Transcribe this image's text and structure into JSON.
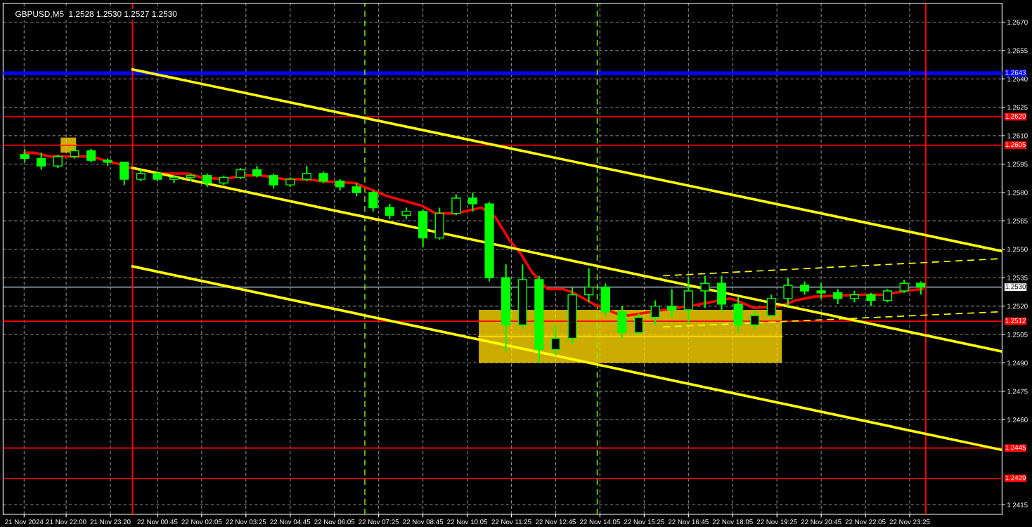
{
  "chart_data": {
    "type": "candlestick",
    "title": "GBPUSD,M5  1.2528 1.2530 1.2527 1.2530",
    "color": "#00ff00",
    "x": [
      "2024-11-21T20:45",
      "2024-11-21T21:15",
      "2024-11-21T21:45",
      "2024-11-21T22:15",
      "2024-11-21T22:45",
      "2024-11-21T23:15",
      "2024-11-21T23:45",
      "2024-11-22T00:15",
      "2024-11-22T00:45",
      "2024-11-22T01:15",
      "2024-11-22T01:45",
      "2024-11-22T02:15",
      "2024-11-22T02:45",
      "2024-11-22T03:15",
      "2024-11-22T03:45",
      "2024-11-22T04:15",
      "2024-11-22T04:45",
      "2024-11-22T05:15",
      "2024-11-22T05:45",
      "2024-11-22T06:15",
      "2024-11-22T06:45",
      "2024-11-22T07:15",
      "2024-11-22T07:45",
      "2024-11-22T08:15",
      "2024-11-22T08:45",
      "2024-11-22T09:15",
      "2024-11-22T09:45",
      "2024-11-22T10:15",
      "2024-11-22T10:45",
      "2024-11-22T11:15",
      "2024-11-22T11:45",
      "2024-11-22T12:15",
      "2024-11-22T12:45",
      "2024-11-22T13:15",
      "2024-11-22T13:45",
      "2024-11-22T14:15",
      "2024-11-22T14:45",
      "2024-11-22T15:15",
      "2024-11-22T15:45",
      "2024-11-22T16:15",
      "2024-11-22T16:45",
      "2024-11-22T17:15",
      "2024-11-22T17:45",
      "2024-11-22T18:15",
      "2024-11-22T18:45",
      "2024-11-22T19:15",
      "2024-11-22T19:45",
      "2024-11-22T20:15",
      "2024-11-22T20:45",
      "2024-11-22T21:15",
      "2024-11-22T21:45",
      "2024-11-22T22:15",
      "2024-11-22T22:45",
      "2024-11-22T23:15",
      "2024-11-22T23:45"
    ],
    "ohlc": [
      [
        1.26,
        1.2603,
        1.2596,
        1.2598
      ],
      [
        1.2598,
        1.2601,
        1.2592,
        1.2594
      ],
      [
        1.2594,
        1.26,
        1.2593,
        1.2599
      ],
      [
        1.2599,
        1.2604,
        1.2598,
        1.2602
      ],
      [
        1.2602,
        1.2603,
        1.2596,
        1.2597
      ],
      [
        1.2597,
        1.2598,
        1.2594,
        1.2596
      ],
      [
        1.2596,
        1.2596,
        1.2584,
        1.2587
      ],
      [
        1.2587,
        1.2592,
        1.2586,
        1.259
      ],
      [
        1.259,
        1.2591,
        1.2586,
        1.2587
      ],
      [
        1.2587,
        1.2589,
        1.2585,
        1.2588
      ],
      [
        1.2588,
        1.259,
        1.2586,
        1.2589
      ],
      [
        1.2589,
        1.259,
        1.2583,
        1.2585
      ],
      [
        1.2585,
        1.2589,
        1.2584,
        1.2588
      ],
      [
        1.2588,
        1.2593,
        1.2587,
        1.2592
      ],
      [
        1.2592,
        1.2594,
        1.2588,
        1.2589
      ],
      [
        1.2589,
        1.259,
        1.2582,
        1.2584
      ],
      [
        1.2584,
        1.2588,
        1.2583,
        1.2587
      ],
      [
        1.2587,
        1.2594,
        1.2586,
        1.259
      ],
      [
        1.259,
        1.2591,
        1.2585,
        1.2586
      ],
      [
        1.2586,
        1.2587,
        1.2581,
        1.2583
      ],
      [
        1.2583,
        1.2585,
        1.2578,
        1.258
      ],
      [
        1.258,
        1.2581,
        1.257,
        1.2572
      ],
      [
        1.2572,
        1.2574,
        1.2566,
        1.2568
      ],
      [
        1.2568,
        1.2572,
        1.2566,
        1.257
      ],
      [
        1.257,
        1.2571,
        1.2551,
        1.2556
      ],
      [
        1.2556,
        1.2572,
        1.2555,
        1.2569
      ],
      [
        1.2569,
        1.2579,
        1.2568,
        1.2577
      ],
      [
        1.2577,
        1.258,
        1.257,
        1.2574
      ],
      [
        1.2574,
        1.2575,
        1.2533,
        1.2535
      ],
      [
        1.2535,
        1.2542,
        1.2496,
        1.251
      ],
      [
        1.251,
        1.2542,
        1.2508,
        1.2534
      ],
      [
        1.2534,
        1.2536,
        1.249,
        1.2497
      ],
      [
        1.2497,
        1.251,
        1.2494,
        1.2503
      ],
      [
        1.2503,
        1.253,
        1.25,
        1.2526
      ],
      [
        1.2526,
        1.254,
        1.2522,
        1.253
      ],
      [
        1.253,
        1.2532,
        1.2515,
        1.2517
      ],
      [
        1.2517,
        1.252,
        1.2503,
        1.2506
      ],
      [
        1.2506,
        1.2516,
        1.2505,
        1.2514
      ],
      [
        1.2514,
        1.2523,
        1.251,
        1.252
      ],
      [
        1.252,
        1.2529,
        1.2514,
        1.2518
      ],
      [
        1.2518,
        1.2535,
        1.2511,
        1.2528
      ],
      [
        1.2528,
        1.2536,
        1.2519,
        1.2532
      ],
      [
        1.2532,
        1.2536,
        1.2517,
        1.2521
      ],
      [
        1.2521,
        1.2525,
        1.2506,
        1.251
      ],
      [
        1.251,
        1.2518,
        1.2508,
        1.2515
      ],
      [
        1.2515,
        1.2526,
        1.2514,
        1.2524
      ],
      [
        1.2524,
        1.2535,
        1.252,
        1.2531
      ],
      [
        1.2531,
        1.2533,
        1.2526,
        1.2528
      ],
      [
        1.2528,
        1.2532,
        1.2524,
        1.2527
      ],
      [
        1.2527,
        1.2529,
        1.2521,
        1.2524
      ],
      [
        1.2524,
        1.2528,
        1.2522,
        1.2526
      ],
      [
        1.2526,
        1.2527,
        1.252,
        1.2523
      ],
      [
        1.2523,
        1.2529,
        1.2522,
        1.2528
      ],
      [
        1.2528,
        1.2534,
        1.2527,
        1.2532
      ],
      [
        1.2532,
        1.2533,
        1.2526,
        1.253
      ]
    ],
    "series": [
      {
        "type": "line",
        "color": "#ffd700",
        "x": [
          "2024-11-21T21:50",
          "2024-11-21T22:18"
        ],
        "lower": [
          1.2601,
          1.2601
        ],
        "upper": [
          1.2609,
          1.2609
        ],
        "values": [
          1.2605,
          1.2605
        ]
      },
      {
        "type": "line",
        "color": "#ffd700",
        "x": [
          "2024-11-22T10:26",
          "2024-11-22T19:34"
        ],
        "lower": [
          1.249,
          1.249
        ],
        "upper": [
          1.2518,
          1.2518
        ],
        "values": [
          1.2504,
          1.2504
        ]
      },
      {
        "type": "line",
        "color": "#ff0000",
        "x": [
          "2024-11-21T20:45",
          "2024-11-21T21:02",
          "2024-11-21T21:31",
          "2024-11-21T22:04",
          "2024-11-21T22:46",
          "2024-11-21T23:10",
          "2024-11-21T23:35",
          "2024-11-21T23:56",
          "2024-11-22T00:50",
          "2024-11-22T01:40",
          "2024-11-22T02:05",
          "2024-11-22T02:46",
          "2024-11-22T03:19",
          "2024-11-22T03:53",
          "2024-11-22T04:34",
          "2024-11-22T05:15",
          "2024-11-22T05:40",
          "2024-11-22T06:42",
          "2024-11-22T07:41",
          "2024-11-22T08:43",
          "2024-11-22T09:08",
          "2024-11-22T09:45",
          "2024-11-22T10:31",
          "2024-11-22T10:56",
          "2024-11-22T11:21",
          "2024-11-22T11:41",
          "2024-11-22T12:02",
          "2024-11-22T12:30",
          "2024-11-22T12:58",
          "2024-11-22T13:17",
          "2024-11-22T13:54",
          "2024-11-22T14:35",
          "2024-11-22T14:56",
          "2024-11-22T15:38",
          "2024-11-22T16:23",
          "2024-11-22T17:05",
          "2024-11-22T18:00",
          "2024-11-22T18:12",
          "2024-11-22T18:44",
          "2024-11-22T19:30",
          "2024-11-22T19:59",
          "2024-11-22T20:32",
          "2024-11-22T21:56",
          "2024-11-22T22:37",
          "2024-11-22T23:18",
          "2024-11-22T23:48"
        ],
        "values": [
          1.2601,
          1.2601,
          1.2599,
          1.2599,
          1.2599,
          1.2597,
          1.2595,
          1.2593,
          1.259,
          1.259,
          1.2588,
          1.2587,
          1.2589,
          1.2589,
          1.2587,
          1.2587,
          1.2586,
          1.2585,
          1.2578,
          1.2573,
          1.2569,
          1.2569,
          1.2572,
          1.2567,
          1.2555,
          1.2548,
          1.2538,
          1.2529,
          1.2529,
          1.2527,
          1.2521,
          1.2516,
          1.2515,
          1.2517,
          1.2519,
          1.2521,
          1.2524,
          1.2523,
          1.2519,
          1.252,
          1.2523,
          1.2525,
          1.2526,
          1.2526,
          1.2528,
          1.2529
        ]
      },
      {
        "type": "line",
        "color": "#ffff00",
        "x": [
          "2024-11-22T00:00",
          "2024-11-23T02:12"
        ],
        "values": [
          1.2645,
          1.2549
        ]
      },
      {
        "type": "line",
        "color": "#ffff00",
        "x": [
          "2024-11-22T00:00",
          "2024-11-23T02:12"
        ],
        "values": [
          1.2593,
          1.2496
        ]
      },
      {
        "type": "line",
        "color": "#ffff00",
        "x": [
          "2024-11-22T00:00",
          "2024-11-23T02:12"
        ],
        "values": [
          1.2541,
          1.2444
        ]
      },
      {
        "type": "line",
        "color": "#ffff00",
        "line_style": "dashed",
        "x": [
          "2024-11-22T15:59",
          "2024-11-23T02:08"
        ],
        "values": [
          1.2536,
          1.2545
        ]
      },
      {
        "type": "line",
        "color": "#ffff00",
        "line_style": "dashed",
        "x": [
          "2024-11-22T15:59",
          "2024-11-23T02:08"
        ],
        "values": [
          1.2509,
          1.2517
        ]
      }
    ],
    "ref_lines": [
      {
        "axis": "y",
        "value": 1.2643,
        "label": "1.2643",
        "color": "#0000ff"
      },
      {
        "axis": "y",
        "value": 1.262,
        "label": "1.2620",
        "color": "#ff0000"
      },
      {
        "axis": "y",
        "value": 1.2605,
        "label": "1.2605",
        "color": "#ff0000"
      },
      {
        "axis": "y",
        "value": 1.253,
        "label": "1.2530",
        "color": "#8c9aa8"
      },
      {
        "axis": "y",
        "value": 1.2512,
        "label": "1.2512",
        "color": "#ff0000"
      },
      {
        "axis": "y",
        "value": 1.2445,
        "label": "1.2445",
        "color": "#ff0000"
      },
      {
        "axis": "y",
        "value": 1.2429,
        "label": "1.2429",
        "color": "#ff0000"
      },
      {
        "axis": "x",
        "value": "2024-11-22T00:00",
        "color": "#ff0000"
      },
      {
        "axis": "x",
        "value": "2024-11-22T23:54",
        "color": "#ff0000"
      },
      {
        "axis": "x",
        "value": "2024-11-22T07:00",
        "color": "#7fff00",
        "line_style": "dashed"
      },
      {
        "axis": "x",
        "value": "2024-11-22T14:00",
        "color": "#7fff00",
        "line_style": "dashed"
      }
    ],
    "xlim": [
      "2024-11-21T20:06",
      "2024-11-23T02:12"
    ],
    "ylim": [
      1.241,
      1.268
    ],
    "xticks": [
      {
        "value": "2024-11-21T20:44",
        "label": "21 Nov 2024"
      },
      {
        "value": "2024-11-21T22:00",
        "label": "21 Nov 22:00"
      },
      {
        "value": "2024-11-21T23:20",
        "label": "21 Nov 23:20"
      },
      {
        "value": "2024-11-22T00:45",
        "label": "22 Nov 00:45"
      },
      {
        "value": "2024-11-22T02:05",
        "label": "22 Nov 02:05"
      },
      {
        "value": "2024-11-22T03:25",
        "label": "22 Nov 03:25"
      },
      {
        "value": "2024-11-22T04:45",
        "label": "22 Nov 04:45"
      },
      {
        "value": "2024-11-22T06:05",
        "label": "22 Nov 06:05"
      },
      {
        "value": "2024-11-22T07:25",
        "label": "22 Nov 07:25"
      },
      {
        "value": "2024-11-22T08:45",
        "label": "22 Nov 08:45"
      },
      {
        "value": "2024-11-22T10:05",
        "label": "22 Nov 10:05"
      },
      {
        "value": "2024-11-22T11:25",
        "label": "22 Nov 11:25"
      },
      {
        "value": "2024-11-22T12:45",
        "label": "22 Nov 12:45"
      },
      {
        "value": "2024-11-22T14:05",
        "label": "22 Nov 14:05"
      },
      {
        "value": "2024-11-22T15:25",
        "label": "22 Nov 15:25"
      },
      {
        "value": "2024-11-22T16:45",
        "label": "22 Nov 16:45"
      },
      {
        "value": "2024-11-22T18:05",
        "label": "22 Nov 18:05"
      },
      {
        "value": "2024-11-22T19:25",
        "label": "22 Nov 19:25"
      },
      {
        "value": "2024-11-22T20:45",
        "label": "22 Nov 20:45"
      },
      {
        "value": "2024-11-22T22:05",
        "label": "22 Nov 22:05"
      },
      {
        "value": "2024-11-22T23:25",
        "label": "22 Nov 23:25"
      }
    ],
    "yticks": [
      1.2415,
      {
        "value": 1.246,
        "label": "1.2460"
      },
      1.2475,
      {
        "value": 1.249,
        "label": "1.2490"
      },
      1.2505,
      {
        "value": 1.252,
        "label": "1.2520"
      },
      1.2535,
      {
        "value": 1.255,
        "label": "1.2550"
      },
      1.2565,
      {
        "value": 1.258,
        "label": "1.2580"
      },
      1.2595,
      {
        "value": 1.261,
        "label": "1.2610"
      },
      1.2625,
      {
        "value": 1.264,
        "label": "1.2640"
      },
      1.2655,
      {
        "value": 1.267,
        "label": "1.2670"
      }
    ],
    "grid": true
  }
}
